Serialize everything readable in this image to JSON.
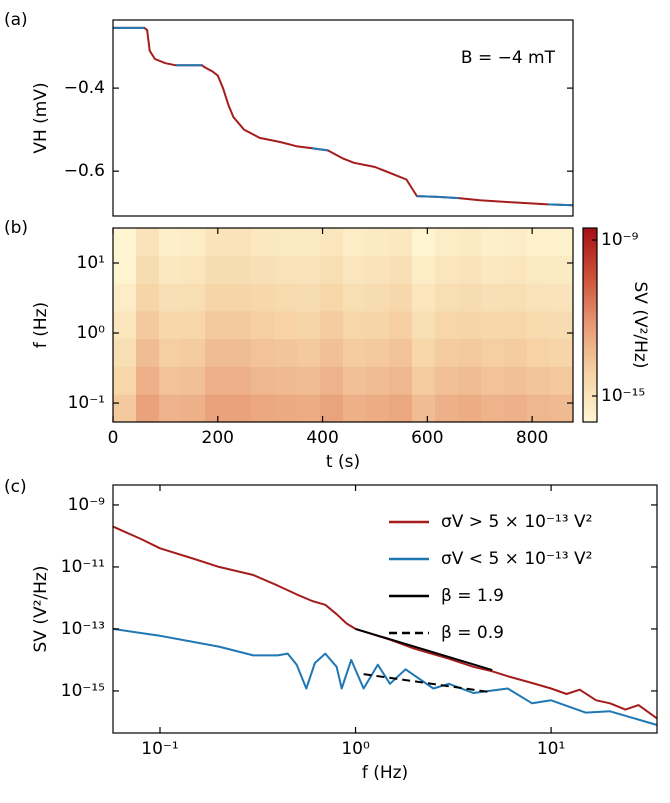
{
  "chart_data": [
    {
      "type": "line",
      "panel": "(a)",
      "ylabel": "VH (mV)",
      "annotation": "B = −4 mT",
      "xlim": [
        0,
        878
      ],
      "ylim": [
        -0.708,
        -0.236
      ],
      "yticks": [
        {
          "value": -0.4,
          "label": "−0.4"
        },
        {
          "value": -0.6,
          "label": "−0.6"
        }
      ],
      "x": [
        0,
        60,
        65,
        70,
        80,
        100,
        120,
        170,
        175,
        190,
        200,
        210,
        220,
        230,
        250,
        280,
        320,
        350,
        380,
        410,
        440,
        460,
        500,
        540,
        560,
        580,
        620,
        660,
        700,
        760,
        830,
        878
      ],
      "series": [
        {
          "color": "#a51c1c",
          "values": [
            -0.255,
            -0.255,
            -0.26,
            -0.31,
            -0.33,
            -0.34,
            -0.345,
            -0.345,
            -0.35,
            -0.36,
            -0.37,
            -0.4,
            -0.44,
            -0.47,
            -0.5,
            -0.52,
            -0.53,
            -0.54,
            -0.545,
            -0.55,
            -0.57,
            -0.58,
            -0.59,
            -0.61,
            -0.62,
            -0.66,
            -0.662,
            -0.665,
            -0.67,
            -0.675,
            -0.68,
            -0.682
          ]
        },
        {
          "color": "#1f77b4",
          "values": [
            -0.255,
            -0.255,
            null,
            null,
            null,
            null,
            -0.345,
            -0.345,
            null,
            null,
            null,
            null,
            null,
            null,
            null,
            null,
            null,
            null,
            -0.545,
            -0.55,
            null,
            null,
            null,
            null,
            null,
            -0.66,
            -0.662,
            -0.665,
            null,
            null,
            -0.68,
            -0.682
          ]
        }
      ]
    },
    {
      "type": "heatmap",
      "panel": "(b)",
      "xlabel": "t (s)",
      "ylabel": "f (Hz)",
      "colorbar_label": "SV (V²/Hz)",
      "xlim": [
        0,
        878
      ],
      "ylim": [
        0.0536,
        31.6
      ],
      "log_y": true,
      "xticks": [
        0,
        200,
        400,
        600,
        800
      ],
      "yticks": [
        {
          "value": 0.1,
          "label": "10⁻¹"
        },
        {
          "value": 1,
          "label": "10⁰"
        },
        {
          "value": 10,
          "label": "10¹"
        }
      ],
      "clim": [
        1e-16,
        2.9e-09
      ],
      "log_c": true,
      "cticks": [
        {
          "value": 1e-09,
          "label": "10⁻⁹"
        },
        {
          "value": 1e-15,
          "label": "10⁻¹⁵"
        }
      ],
      "colormap": [
        "#fef6d2",
        "#f6d3a6",
        "#e79a74",
        "#cc5038",
        "#a50f15"
      ],
      "x_edges": [
        0,
        43.9,
        87.8,
        131.7,
        175.6,
        219.5,
        263.4,
        307.3,
        351.2,
        395.1,
        439,
        482.9,
        526.8,
        570.7,
        614.6,
        658.5,
        702.4,
        746.3,
        790.2,
        834.1,
        878
      ],
      "y_edges": [
        0.0536,
        0.133,
        0.332,
        0.826,
        2.06,
        5.12,
        12.7,
        31.6
      ],
      "z": [
        [
          1.6e-14,
          3e-13,
          8e-14,
          1e-13,
          3e-13,
          3e-13,
          2e-13,
          1.6e-13,
          1.3e-13,
          2.5e-13,
          1e-13,
          1.3e-13,
          2e-13,
          4e-14,
          1e-13,
          1.3e-13,
          8e-14,
          1e-13,
          6e-14,
          5e-14
        ],
        [
          5e-15,
          1e-13,
          2.5e-14,
          3e-14,
          1e-13,
          1e-13,
          6e-14,
          5e-14,
          4e-14,
          8e-14,
          3e-14,
          4e-14,
          6e-14,
          1.3e-14,
          3e-14,
          4e-14,
          2.5e-14,
          3e-14,
          2e-14,
          1.6e-14
        ],
        [
          2e-15,
          4e-14,
          1e-14,
          1.2e-14,
          4e-14,
          4e-14,
          2.5e-14,
          2e-14,
          1.6e-14,
          3e-14,
          1.2e-14,
          1.6e-14,
          2.5e-14,
          5e-15,
          1.2e-14,
          1.6e-14,
          1e-14,
          1.2e-14,
          8e-15,
          6e-15
        ],
        [
          8e-16,
          1.6e-14,
          4e-15,
          5e-15,
          1.6e-14,
          1.6e-14,
          1e-14,
          8e-15,
          6e-15,
          1.2e-14,
          5e-15,
          6e-15,
          1e-14,
          2e-15,
          5e-15,
          6e-15,
          4e-15,
          5e-15,
          3e-15,
          2.5e-15
        ],
        [
          3e-16,
          6e-15,
          1.6e-15,
          2e-15,
          6e-15,
          6e-15,
          4e-15,
          3e-15,
          2.5e-15,
          5e-15,
          2e-15,
          2.5e-15,
          4e-15,
          8e-16,
          2e-15,
          2.5e-15,
          1.6e-15,
          2e-15,
          1.2e-15,
          1e-15
        ],
        [
          1.2e-16,
          2.5e-15,
          6e-16,
          8e-16,
          2.5e-15,
          2.5e-15,
          1.6e-15,
          1.2e-15,
          1e-15,
          2e-15,
          8e-16,
          1e-15,
          1.6e-15,
          3e-16,
          8e-16,
          1e-15,
          6e-16,
          8e-16,
          5e-16,
          4e-16
        ],
        [
          5e-17,
          1e-15,
          2.5e-16,
          3e-16,
          1e-15,
          1e-15,
          6e-16,
          5e-16,
          4e-16,
          8e-16,
          3e-16,
          4e-16,
          6e-16,
          1.2e-16,
          3e-16,
          4e-16,
          2.5e-16,
          3e-16,
          2e-16,
          1.6e-16
        ]
      ]
    },
    {
      "type": "line",
      "panel": "(c)",
      "xlabel": "f (Hz)",
      "ylabel": "SV (V²/Hz)",
      "xlim": [
        0.0575,
        34.8
      ],
      "ylim": [
        4.4e-17,
        4.4e-09
      ],
      "log_x": true,
      "log_y": true,
      "legend": "upper right",
      "xticks": [
        {
          "value": 0.1,
          "label": "10⁻¹"
        },
        {
          "value": 1,
          "label": "10⁰"
        },
        {
          "value": 10,
          "label": "10¹"
        }
      ],
      "yticks": [
        {
          "value": 1e-15,
          "label": "10⁻¹⁵"
        },
        {
          "value": 1e-13,
          "label": "10⁻¹³"
        },
        {
          "value": 1e-11,
          "label": "10⁻¹¹"
        },
        {
          "value": 1e-09,
          "label": "10⁻⁹"
        }
      ],
      "series": [
        {
          "name": "σV > 5 × 10⁻¹³ V²",
          "color": "#a51c1c",
          "x": [
            0.0575,
            0.08,
            0.1,
            0.15,
            0.2,
            0.3,
            0.4,
            0.5,
            0.6,
            0.7,
            0.8,
            0.9,
            1,
            1.5,
            2,
            3,
            4,
            5,
            6,
            8,
            10,
            12,
            14,
            17,
            20,
            24,
            28,
            34.8
          ],
          "values": [
            2e-10,
            8e-11,
            4e-11,
            1.8e-11,
            1e-11,
            5.5e-12,
            2.5e-12,
            1.3e-12,
            8e-13,
            6e-13,
            3e-13,
            1.5e-13,
            1e-13,
            4.5e-14,
            2.3e-14,
            1.1e-14,
            6e-15,
            4.3e-15,
            3e-15,
            1.8e-15,
            1.2e-15,
            8e-16,
            1.1e-15,
            5e-16,
            4e-16,
            2.5e-16,
            3.5e-16,
            1.3e-16
          ]
        },
        {
          "name": "σV < 5 × 10⁻¹³ V²",
          "color": "#1f77b4",
          "x": [
            0.0575,
            0.1,
            0.2,
            0.3,
            0.4,
            0.45,
            0.5,
            0.56,
            0.62,
            0.7,
            0.8,
            0.85,
            0.95,
            1.1,
            1.3,
            1.5,
            1.8,
            2.5,
            3,
            4,
            6,
            8,
            10,
            15,
            20,
            34.8
          ],
          "values": [
            1e-13,
            6e-14,
            2.7e-14,
            1.4e-14,
            1.4e-14,
            1.6e-14,
            7e-15,
            1.2e-15,
            8e-15,
            1.6e-14,
            6e-15,
            1.2e-15,
            1e-14,
            1.2e-15,
            7e-15,
            1.7e-15,
            5e-15,
            1.2e-15,
            1.7e-15,
            8.6e-16,
            1.2e-15,
            4e-16,
            5e-16,
            2e-16,
            2.2e-16,
            8e-17
          ]
        },
        {
          "name": "β = 1.9",
          "color": "#000000",
          "dashed": false,
          "x": [
            1,
            5
          ],
          "values": [
            1e-13,
            4.7e-15
          ]
        },
        {
          "name": "β = 0.9",
          "color": "#000000",
          "dashed": true,
          "x": [
            1.1,
            5
          ],
          "values": [
            3.5e-15,
            9e-16
          ]
        }
      ]
    }
  ]
}
